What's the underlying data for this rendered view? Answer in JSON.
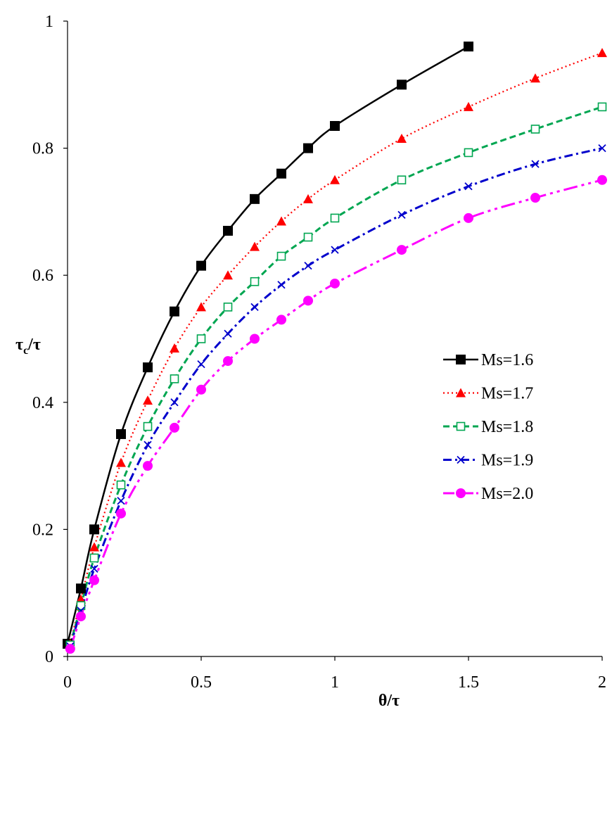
{
  "chart_data": {
    "type": "line",
    "title": "",
    "xlabel": "θ/τ",
    "ylabel_main": "τ",
    "ylabel_sub": "c",
    "ylabel_tail": "/τ",
    "xlim": [
      0,
      2
    ],
    "ylim": [
      0,
      1
    ],
    "xticks": [
      0,
      0.5,
      1,
      1.5,
      2
    ],
    "xtick_labels": [
      "0",
      "0.5",
      "1",
      "1.5",
      "2"
    ],
    "yticks": [
      0,
      0.2,
      0.4,
      0.6,
      0.8,
      1
    ],
    "ytick_labels": [
      "0",
      "0.2",
      "0.4",
      "0.6",
      "0.8",
      "1"
    ],
    "grid": false,
    "legend_position": "center-right",
    "series": [
      {
        "name": "Ms=1.6",
        "color": "#000000",
        "dash": "solid",
        "marker": "filled-square",
        "x": [
          0,
          0.05,
          0.1,
          0.2,
          0.3,
          0.4,
          0.5,
          0.6,
          0.7,
          0.8,
          0.9,
          1.0,
          1.25,
          1.5
        ],
        "y": [
          0.02,
          0.107,
          0.2,
          0.35,
          0.455,
          0.543,
          0.615,
          0.67,
          0.72,
          0.76,
          0.8,
          0.835,
          0.9,
          0.96
        ]
      },
      {
        "name": "Ms=1.7",
        "color": "#ff0000",
        "dash": "dotted",
        "marker": "filled-triangle",
        "x": [
          0.01,
          0.05,
          0.1,
          0.2,
          0.3,
          0.4,
          0.5,
          0.6,
          0.7,
          0.8,
          0.9,
          1.0,
          1.25,
          1.5,
          1.75,
          2.0
        ],
        "y": [
          0.02,
          0.09,
          0.172,
          0.305,
          0.403,
          0.485,
          0.55,
          0.6,
          0.645,
          0.685,
          0.72,
          0.75,
          0.815,
          0.865,
          0.91,
          0.95
        ]
      },
      {
        "name": "Ms=1.8",
        "color": "#00a651",
        "dash": "dashed",
        "marker": "open-square",
        "x": [
          0.01,
          0.05,
          0.1,
          0.2,
          0.3,
          0.4,
          0.5,
          0.6,
          0.7,
          0.8,
          0.9,
          1.0,
          1.25,
          1.5,
          1.75,
          2.0
        ],
        "y": [
          0.018,
          0.08,
          0.155,
          0.27,
          0.362,
          0.437,
          0.5,
          0.55,
          0.59,
          0.63,
          0.66,
          0.69,
          0.75,
          0.793,
          0.83,
          0.865
        ]
      },
      {
        "name": "Ms=1.9",
        "color": "#0000cc",
        "dash": "dash-dot",
        "marker": "cross",
        "x": [
          0.01,
          0.05,
          0.1,
          0.2,
          0.3,
          0.4,
          0.5,
          0.6,
          0.7,
          0.8,
          0.9,
          1.0,
          1.25,
          1.5,
          1.75,
          2.0
        ],
        "y": [
          0.016,
          0.072,
          0.138,
          0.245,
          0.333,
          0.4,
          0.46,
          0.508,
          0.55,
          0.585,
          0.615,
          0.64,
          0.695,
          0.74,
          0.775,
          0.8
        ]
      },
      {
        "name": "Ms=2.0",
        "color": "#ff00ff",
        "dash": "long-dash-dot",
        "marker": "filled-circle",
        "x": [
          0.01,
          0.05,
          0.1,
          0.2,
          0.3,
          0.4,
          0.5,
          0.6,
          0.7,
          0.8,
          0.9,
          1.0,
          1.25,
          1.5,
          1.75,
          2.0
        ],
        "y": [
          0.012,
          0.063,
          0.12,
          0.225,
          0.3,
          0.36,
          0.42,
          0.465,
          0.5,
          0.53,
          0.56,
          0.587,
          0.64,
          0.69,
          0.722,
          0.75
        ]
      }
    ]
  }
}
